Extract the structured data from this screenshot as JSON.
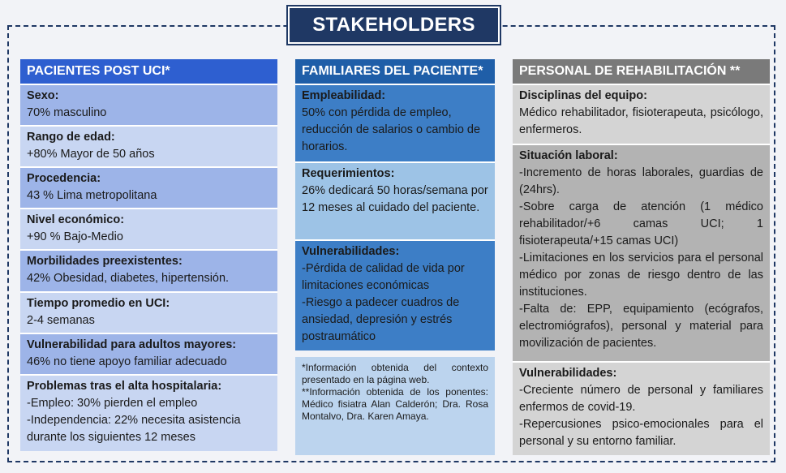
{
  "title": "STAKEHOLDERS",
  "col1": {
    "header": "PACIENTES POST UCI*",
    "rows": [
      {
        "label": "Sexo:",
        "text": "70% masculino"
      },
      {
        "label": "Rango de edad:",
        "text": "+80% Mayor de 50 años"
      },
      {
        "label": "Procedencia:",
        "text": "43 % Lima metropolitana"
      },
      {
        "label": "Nivel económico:",
        "text": "+90 % Bajo-Medio"
      },
      {
        "label": "Morbilidades preexistentes:",
        "text": "42% Obesidad, diabetes, hipertensión."
      },
      {
        "label": "Tiempo promedio en UCI:",
        "text": "2-4 semanas"
      },
      {
        "label": "Vulnerabilidad para adultos mayores:",
        "text": "46% no tiene apoyo familiar adecuado"
      },
      {
        "label": "Problemas tras el alta hospitalaria:",
        "lines": [
          "-Empleo: 30% pierden el empleo",
          "-Independencia: 22% necesita asistencia durante los siguientes 12 meses"
        ]
      }
    ]
  },
  "col2": {
    "header": "FAMILIARES DEL PACIENTE*",
    "rows": [
      {
        "label": "Empleabilidad:",
        "text": "50% con pérdida de empleo, reducción de salarios o cambio de horarios."
      },
      {
        "label": "Requerimientos:",
        "text": "26% dedicará 50 horas/semana por 12 meses al cuidado del paciente."
      },
      {
        "label": "Vulnerabilidades:",
        "lines": [
          "-Pérdida de calidad de vida por limitaciones económicas",
          "-Riesgo a padecer cuadros de ansiedad, depresión y estrés postraumático"
        ]
      }
    ],
    "note": [
      "*Información obtenida del contexto presentado en la página web.",
      "**Información obtenida de los ponentes: Médico fisiatra Alan Calderón; Dra. Rosa Montalvo, Dra. Karen Amaya."
    ]
  },
  "col3": {
    "header": "PERSONAL DE REHABILITACIÓN **",
    "rows": [
      {
        "label": "Disciplinas del equipo:",
        "text": "Médico rehabilitador, fisioterapeuta, psicólogo, enfermeros."
      },
      {
        "label": "Situación laboral:",
        "lines": [
          "-Incremento de horas laborales, guardias de (24hrs).",
          "-Sobre carga de atención (1 médico rehabilitador/+6 camas UCI; 1 fisioterapeuta/+15 camas UCI)",
          "-Limitaciones en los servicios para el personal médico por zonas de riesgo dentro de las instituciones.",
          "-Falta de: EPP, equipamiento (ecógrafos, electromiógrafos), personal y material para movilización de pacientes."
        ]
      },
      {
        "label": "Vulnerabilidades:",
        "lines": [
          "-Creciente número de personal y familiares enfermos de covid-19.",
          "-Repercusiones psico-emocionales para el personal y su entorno familiar."
        ]
      }
    ]
  }
}
